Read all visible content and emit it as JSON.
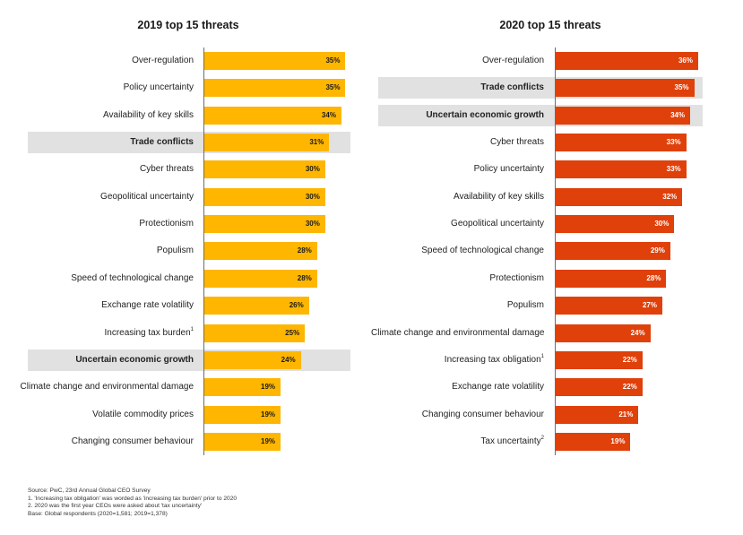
{
  "chart_data": [
    {
      "type": "bar",
      "orientation": "horizontal",
      "title": "2019 top 15 threats",
      "color": "#FFB600",
      "value_text_color": "#1a1a1a",
      "xlim": [
        0,
        36
      ],
      "categories": [
        "Over-regulation",
        "Policy uncertainty",
        "Availability of key skills",
        "Trade conflicts",
        "Cyber threats",
        "Geopolitical uncertainty",
        "Protectionism",
        "Populism",
        "Speed of technological change",
        "Exchange rate volatility",
        "Increasing tax burden",
        "Uncertain economic growth",
        "Climate change and environmental damage",
        "Volatile commodity prices",
        "Changing consumer behaviour"
      ],
      "superscripts": [
        "",
        "",
        "",
        "",
        "",
        "",
        "",
        "",
        "",
        "",
        "1",
        "",
        "",
        "",
        ""
      ],
      "values": [
        35,
        35,
        34,
        31,
        30,
        30,
        30,
        28,
        28,
        26,
        25,
        24,
        19,
        19,
        19
      ],
      "value_labels": [
        "35%",
        "35%",
        "34%",
        "31%",
        "30%",
        "30%",
        "30%",
        "28%",
        "28%",
        "26%",
        "25%",
        "24%",
        "19%",
        "19%",
        "19%"
      ],
      "highlighted": [
        "Trade conflicts",
        "Uncertain economic growth"
      ]
    },
    {
      "type": "bar",
      "orientation": "horizontal",
      "title": "2020 top 15 threats",
      "color": "#E0400A",
      "value_text_color": "#ffffff",
      "xlim": [
        0,
        36
      ],
      "categories": [
        "Over-regulation",
        "Trade conflicts",
        "Uncertain economic growth",
        "Cyber threats",
        "Policy uncertainty",
        "Availability of key skills",
        "Geopolitical uncertainty",
        "Speed of technological change",
        "Protectionism",
        "Populism",
        "Climate change and environmental damage",
        "Increasing tax obligation",
        "Exchange rate volatility",
        "Changing consumer behaviour",
        "Tax uncertainty"
      ],
      "superscripts": [
        "",
        "",
        "",
        "",
        "",
        "",
        "",
        "",
        "",
        "",
        "",
        "1",
        "",
        "",
        "2"
      ],
      "values": [
        36,
        35,
        34,
        33,
        33,
        32,
        30,
        29,
        28,
        27,
        24,
        22,
        22,
        21,
        19
      ],
      "value_labels": [
        "36%",
        "35%",
        "34%",
        "33%",
        "33%",
        "32%",
        "30%",
        "29%",
        "28%",
        "27%",
        "24%",
        "22%",
        "22%",
        "21%",
        "19%"
      ],
      "highlighted": [
        "Trade conflicts",
        "Uncertain economic growth"
      ]
    }
  ],
  "footnotes": [
    "Source: PwC, 23rd Annual Global CEO Survey",
    "1. 'Increasing tax obligation' was worded as 'increasing tax burden' prior to 2020",
    "2. 2020 was the first year CEOs were asked about 'tax uncertainty'",
    "Base: Global respondents (2020=1,581; 2019=1,378)"
  ]
}
